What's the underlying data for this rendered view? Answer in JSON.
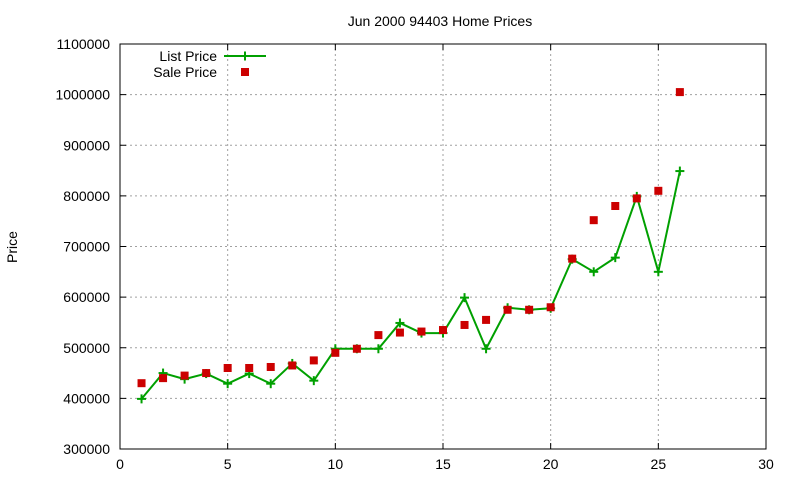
{
  "chart_data": {
    "type": "line",
    "title": "Jun 2000 94403 Home Prices",
    "xlabel": "",
    "ylabel": "Price",
    "xlim": [
      0,
      30
    ],
    "ylim": [
      300000,
      1100000
    ],
    "xticks": [
      0,
      5,
      10,
      15,
      20,
      25,
      30
    ],
    "yticks": [
      300000,
      400000,
      500000,
      600000,
      700000,
      800000,
      900000,
      1000000,
      1100000
    ],
    "grid": true,
    "legend_position": "top-left",
    "series": [
      {
        "name": "List Price",
        "style": "line-with-plus-markers",
        "color": "#00a000",
        "x": [
          1,
          2,
          3,
          4,
          5,
          6,
          7,
          8,
          9,
          10,
          11,
          12,
          13,
          14,
          15,
          16,
          17,
          18,
          19,
          20,
          21,
          22,
          23,
          24,
          25,
          26
        ],
        "values": [
          399000,
          450000,
          438000,
          449000,
          429000,
          449000,
          429000,
          469000,
          435000,
          498000,
          498000,
          498000,
          549000,
          529000,
          529000,
          599000,
          498000,
          579000,
          575000,
          578000,
          675000,
          650000,
          678000,
          799000,
          650000,
          849000
        ]
      },
      {
        "name": "Sale Price",
        "style": "square-markers",
        "color": "#cc0000",
        "x": [
          1,
          2,
          3,
          4,
          5,
          6,
          7,
          8,
          9,
          10,
          11,
          12,
          13,
          14,
          15,
          16,
          17,
          18,
          19,
          20,
          21,
          22,
          23,
          24,
          25,
          26
        ],
        "values": [
          430000,
          440000,
          445000,
          450000,
          460000,
          460000,
          462000,
          465000,
          475000,
          490000,
          498000,
          525000,
          530000,
          532000,
          535000,
          545000,
          555000,
          575000,
          575000,
          580000,
          676000,
          752000,
          780000,
          795000,
          810000,
          1005000
        ]
      }
    ]
  }
}
